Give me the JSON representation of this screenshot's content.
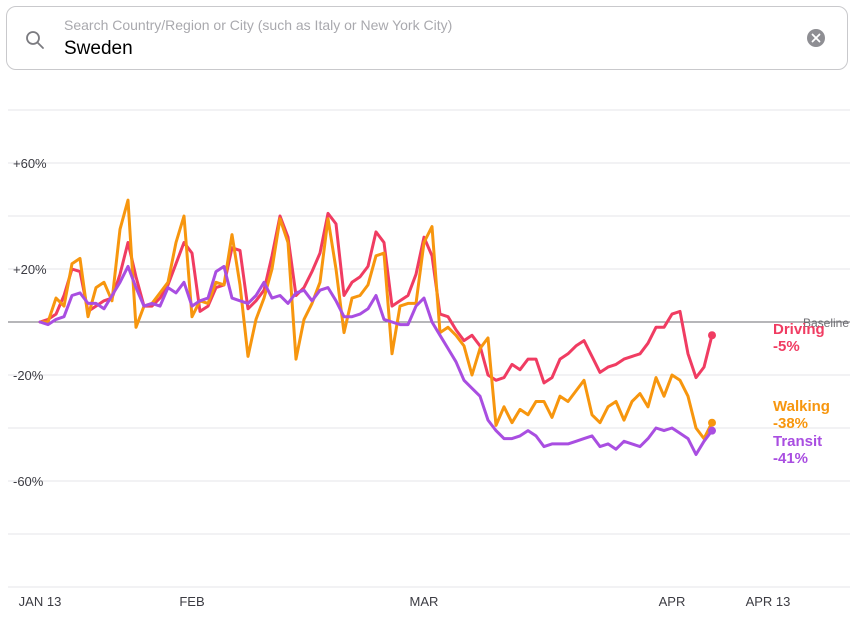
{
  "search": {
    "placeholder": "Search Country/Region or City (such as Italy or New York City)",
    "value": "Sweden"
  },
  "icons": {
    "search": "search-icon",
    "clear": "clear-icon"
  },
  "colors": {
    "driving": "#f03c62",
    "walking": "#f7960e",
    "transit": "#a94ee1",
    "grid": "#e4e4e8",
    "baseline": "#6e6e73",
    "tick_text": "#3c3c43"
  },
  "chart_data": {
    "type": "line",
    "title": "",
    "xlabel": "",
    "ylabel": "",
    "ylim": [
      -100,
      80
    ],
    "grid": true,
    "y_ticks": [
      {
        "value": 60,
        "label": "+60%"
      },
      {
        "value": 20,
        "label": "+20%"
      },
      {
        "value": -20,
        "label": "-20%"
      },
      {
        "value": -60,
        "label": "-60%"
      }
    ],
    "x_ticks": [
      {
        "day": 0,
        "label": "JAN 13"
      },
      {
        "day": 19,
        "label": "FEB"
      },
      {
        "day": 48,
        "label": "MAR"
      },
      {
        "day": 79,
        "label": "APR"
      },
      {
        "day": 91,
        "label": "APR 13"
      }
    ],
    "baseline_label": "Baseline",
    "baseline_value": 0,
    "series": [
      {
        "name": "Driving",
        "end_label": "-5%",
        "color": "#f03c62",
        "values": [
          0,
          1,
          3,
          10,
          20,
          19,
          4,
          6,
          8,
          9,
          18,
          30,
          17,
          6,
          6,
          9,
          14,
          22,
          30,
          26,
          4,
          6,
          13,
          14,
          28,
          27,
          5,
          8,
          12,
          25,
          40,
          32,
          10,
          13,
          19,
          26,
          41,
          37,
          10,
          15,
          17,
          21,
          34,
          30,
          6,
          8,
          10,
          18,
          32,
          25,
          3,
          2,
          -3,
          -7,
          -5,
          -9,
          -20,
          -22,
          -21,
          -16,
          -18,
          -14,
          -14,
          -23,
          -21,
          -14,
          -12,
          -9,
          -7,
          -13,
          -19,
          -17,
          -16,
          -14,
          -13,
          -12,
          -8,
          -2,
          -2,
          3,
          4,
          -12,
          -21,
          -17,
          -5
        ]
      },
      {
        "name": "Walking",
        "end_label": "-38%",
        "color": "#f7960e",
        "values": [
          0,
          0,
          9,
          6,
          22,
          24,
          2,
          13,
          15,
          8,
          35,
          46,
          -2,
          6,
          7,
          11,
          15,
          30,
          40,
          2,
          8,
          7,
          15,
          14,
          33,
          14,
          -13,
          1,
          9,
          20,
          39,
          30,
          -14,
          1,
          7,
          15,
          39,
          20,
          -4,
          9,
          10,
          14,
          25,
          26,
          -12,
          6,
          7,
          7,
          30,
          36,
          -4,
          -2,
          -5,
          -9,
          -20,
          -10,
          -6,
          -39,
          -32,
          -38,
          -33,
          -35,
          -30,
          -30,
          -36,
          -28,
          -30,
          -26,
          -22,
          -35,
          -38,
          -32,
          -30,
          -37,
          -30,
          -27,
          -32,
          -21,
          -28,
          -20,
          -22,
          -28,
          -40,
          -44,
          -38
        ]
      },
      {
        "name": "Transit",
        "end_label": "-41%",
        "color": "#a94ee1",
        "values": [
          0,
          -1,
          1,
          2,
          10,
          11,
          7,
          7,
          5,
          10,
          15,
          21,
          13,
          6,
          7,
          6,
          13,
          11,
          15,
          6,
          8,
          9,
          19,
          21,
          9,
          8,
          7,
          10,
          15,
          9,
          10,
          7,
          11,
          12,
          8,
          12,
          13,
          8,
          2,
          2,
          3,
          5,
          10,
          1,
          0,
          -1,
          -1,
          6,
          9,
          0,
          -5,
          -10,
          -15,
          -22,
          -25,
          -28,
          -37,
          -41,
          -44,
          -44,
          -43,
          -41,
          -43,
          -47,
          -46,
          -46,
          -46,
          -45,
          -44,
          -43,
          -47,
          -46,
          -48,
          -45,
          -46,
          -47,
          -44,
          -40,
          -41,
          -40,
          -42,
          -44,
          -50,
          -45,
          -41
        ]
      }
    ]
  }
}
